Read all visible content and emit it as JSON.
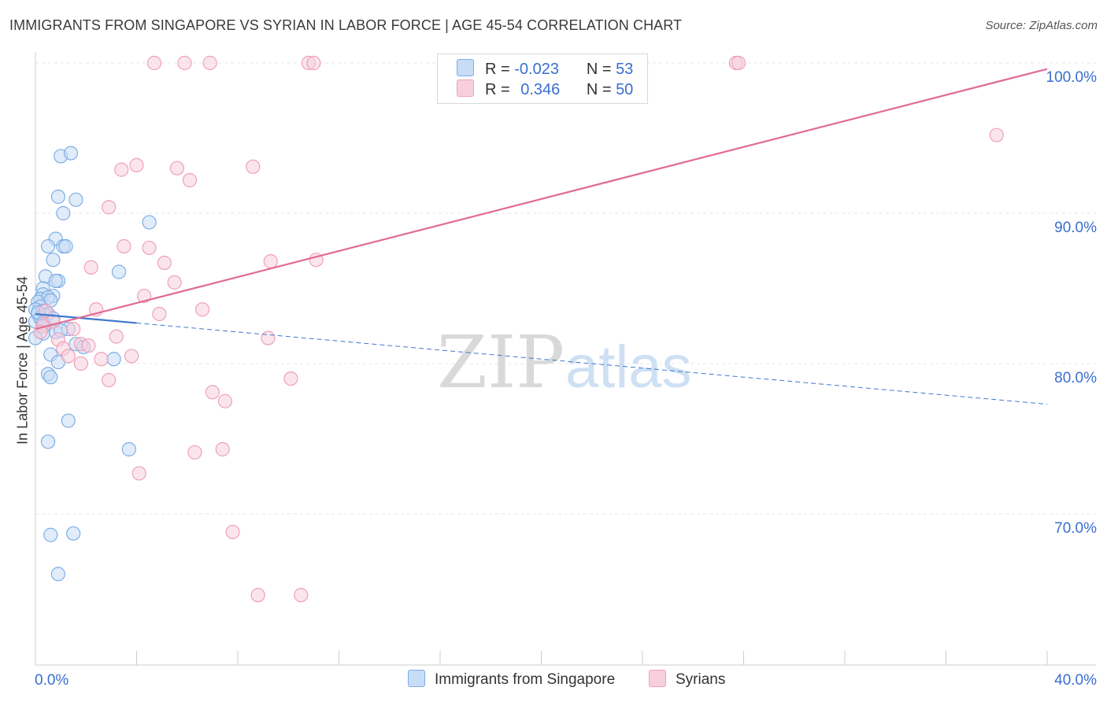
{
  "title": "IMMIGRANTS FROM SINGAPORE VS SYRIAN IN LABOR FORCE | AGE 45-54 CORRELATION CHART",
  "source": "Source: ZipAtlas.com",
  "watermark": {
    "zip": "ZIP",
    "atlas": "atlas"
  },
  "legend": {
    "r_label": "R =",
    "n_label": "N =",
    "rows": [
      {
        "name": "Immigrants from Singapore",
        "r": "-0.023",
        "n": "53"
      },
      {
        "name": "Syrians",
        "r": "0.346",
        "n": "50"
      }
    ]
  },
  "chart_data": {
    "type": "scatter",
    "title": "IMMIGRANTS FROM SINGAPORE VS SYRIAN IN LABOR FORCE | AGE 45-54 CORRELATION CHART",
    "xlabel": "",
    "ylabel": "In Labor Force | Age 45-54",
    "xlim": [
      0,
      40
    ],
    "ylim": [
      61,
      100.5
    ],
    "x_tick_labels": [
      "0.0%",
      "40.0%"
    ],
    "y_ticks": [
      70,
      80,
      90,
      100
    ],
    "y_tick_labels": [
      "70.0%",
      "80.0%",
      "90.0%",
      "100.0%"
    ],
    "grid": true,
    "series": [
      {
        "name": "Immigrants from Singapore",
        "color": "#7eaee6",
        "fill": "#c7dcf5",
        "trend": {
          "x": [
            0,
            40
          ],
          "y": [
            83.3,
            77.3
          ],
          "solid_until_x": 4.0
        },
        "points": [
          [
            1.0,
            93.8
          ],
          [
            1.4,
            94.0
          ],
          [
            0.9,
            91.1
          ],
          [
            1.6,
            90.9
          ],
          [
            1.1,
            90.0
          ],
          [
            4.5,
            89.4
          ],
          [
            0.8,
            88.3
          ],
          [
            0.5,
            87.8
          ],
          [
            1.1,
            87.8
          ],
          [
            1.2,
            87.8
          ],
          [
            0.7,
            86.9
          ],
          [
            3.3,
            86.1
          ],
          [
            0.4,
            85.8
          ],
          [
            0.9,
            85.5
          ],
          [
            0.8,
            85.5
          ],
          [
            0.3,
            85.0
          ],
          [
            0.3,
            84.6
          ],
          [
            0.2,
            84.3
          ],
          [
            0.7,
            84.5
          ],
          [
            0.5,
            84.4
          ],
          [
            0.6,
            84.2
          ],
          [
            0.1,
            84.1
          ],
          [
            0.2,
            83.8
          ],
          [
            0.0,
            83.6
          ],
          [
            0.1,
            83.3
          ],
          [
            0.3,
            83.5
          ],
          [
            0.5,
            83.3
          ],
          [
            0.2,
            83.1
          ],
          [
            0.0,
            82.8
          ],
          [
            0.4,
            82.5
          ],
          [
            1.3,
            82.3
          ],
          [
            0.8,
            82.1
          ],
          [
            0.3,
            82.0
          ],
          [
            0.0,
            81.7
          ],
          [
            1.6,
            81.3
          ],
          [
            1.9,
            81.1
          ],
          [
            0.6,
            80.6
          ],
          [
            0.9,
            80.1
          ],
          [
            3.1,
            80.3
          ],
          [
            0.5,
            79.3
          ],
          [
            0.6,
            79.1
          ],
          [
            1.3,
            76.2
          ],
          [
            0.5,
            74.8
          ],
          [
            3.7,
            74.3
          ],
          [
            0.6,
            68.6
          ],
          [
            1.5,
            68.7
          ],
          [
            0.9,
            66.0
          ],
          [
            0.2,
            83.0
          ],
          [
            0.4,
            83.2
          ],
          [
            0.1,
            83.4
          ],
          [
            0.7,
            83.0
          ],
          [
            0.3,
            82.7
          ],
          [
            1.0,
            82.2
          ]
        ]
      },
      {
        "name": "Syrians",
        "color": "#eea1b8",
        "fill": "#f8d0dc",
        "trend": {
          "x": [
            0,
            40
          ],
          "y": [
            82.3,
            99.6
          ]
        },
        "points": [
          [
            4.7,
            100.0
          ],
          [
            5.9,
            100.0
          ],
          [
            6.9,
            100.0
          ],
          [
            10.8,
            100.0
          ],
          [
            11.0,
            100.0
          ],
          [
            27.7,
            100.0
          ],
          [
            27.8,
            100.0
          ],
          [
            38.0,
            95.2
          ],
          [
            4.0,
            93.2
          ],
          [
            3.4,
            92.9
          ],
          [
            5.6,
            93.0
          ],
          [
            8.6,
            93.1
          ],
          [
            6.1,
            92.2
          ],
          [
            2.9,
            90.4
          ],
          [
            3.5,
            87.8
          ],
          [
            4.5,
            87.7
          ],
          [
            2.2,
            86.4
          ],
          [
            5.1,
            86.7
          ],
          [
            9.3,
            86.8
          ],
          [
            11.1,
            86.9
          ],
          [
            5.5,
            85.4
          ],
          [
            4.3,
            84.5
          ],
          [
            2.4,
            83.6
          ],
          [
            6.6,
            83.6
          ],
          [
            4.9,
            83.3
          ],
          [
            0.4,
            83.5
          ],
          [
            0.7,
            82.8
          ],
          [
            0.3,
            82.5
          ],
          [
            1.5,
            82.3
          ],
          [
            0.2,
            82.1
          ],
          [
            3.2,
            81.8
          ],
          [
            9.2,
            81.7
          ],
          [
            0.9,
            81.6
          ],
          [
            1.8,
            81.3
          ],
          [
            2.1,
            81.2
          ],
          [
            1.1,
            81.0
          ],
          [
            2.6,
            80.3
          ],
          [
            3.8,
            80.5
          ],
          [
            1.3,
            80.5
          ],
          [
            1.8,
            80.0
          ],
          [
            10.1,
            79.0
          ],
          [
            2.9,
            78.9
          ],
          [
            7.0,
            78.1
          ],
          [
            7.5,
            77.5
          ],
          [
            7.4,
            74.3
          ],
          [
            6.3,
            74.1
          ],
          [
            4.1,
            72.7
          ],
          [
            7.8,
            68.8
          ],
          [
            8.8,
            64.6
          ],
          [
            10.5,
            64.6
          ]
        ]
      }
    ]
  }
}
